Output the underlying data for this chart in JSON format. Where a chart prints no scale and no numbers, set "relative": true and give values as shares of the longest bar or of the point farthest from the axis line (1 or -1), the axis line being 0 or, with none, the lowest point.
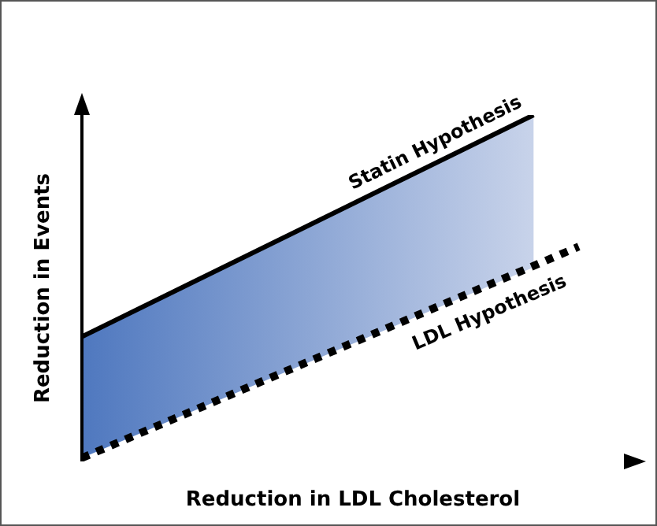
{
  "chart_data": {
    "type": "line",
    "relative": true,
    "xlabel": "Reduction in LDL Cholesterol",
    "ylabel": "Reduction in Events",
    "categories": [
      null,
      null,
      null,
      null,
      null,
      null,
      null,
      null,
      null,
      null,
      null,
      null
    ],
    "series": [
      {
        "name": "Statin Hypothesis",
        "color": "#000000",
        "line_style": "solid",
        "values": [
          0.36,
          null,
          null,
          null,
          null,
          null,
          null,
          null,
          null,
          null,
          1,
          null
        ],
        "lower": [
          0.01,
          null,
          null,
          null,
          null,
          null,
          null,
          null,
          null,
          null,
          0.56,
          null
        ],
        "upper": [
          0.36,
          null,
          null,
          null,
          null,
          null,
          null,
          null,
          null,
          null,
          1,
          null
        ]
      },
      {
        "name": "LDL Hypothesis",
        "color": "#000000",
        "line_style": "dotted",
        "values": [
          0.01,
          null,
          null,
          null,
          null,
          null,
          null,
          null,
          null,
          null,
          null,
          0.62
        ]
      }
    ]
  }
}
